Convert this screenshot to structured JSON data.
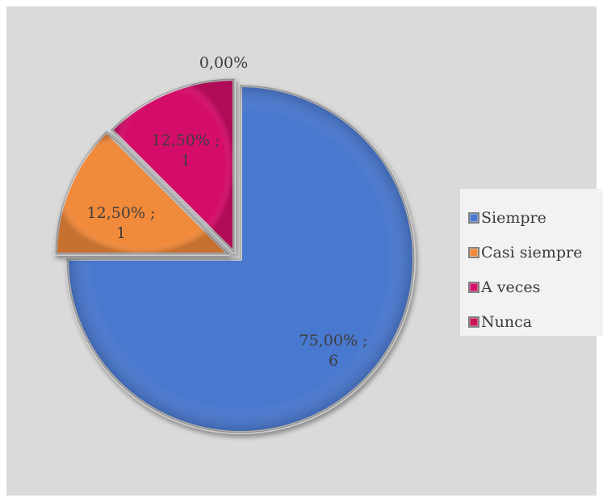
{
  "chart_data": {
    "type": "pie",
    "slices": [
      {
        "label": "Siempre",
        "percent": 75.0,
        "count": 6,
        "color": "#4a78cf",
        "data_label": "75,00% ;\n6"
      },
      {
        "label": "Casi siempre",
        "percent": 12.5,
        "count": 1,
        "color": "#f28a3a",
        "data_label": "12,50% ;\n1"
      },
      {
        "label": "A veces",
        "percent": 12.5,
        "count": 1,
        "color": "#d5106a",
        "data_label": "12,50% ;\n1"
      },
      {
        "label": "Nunca",
        "percent": 0.0,
        "count": 0,
        "color": "#c9155a",
        "data_label": "0,00%"
      }
    ],
    "legend_position": "right",
    "legend": [
      "Siempre",
      "Casi siempre",
      "A veces",
      "Nunca"
    ]
  },
  "colors": {
    "background": "#dadada",
    "legend_background": "#f2f2f2"
  }
}
